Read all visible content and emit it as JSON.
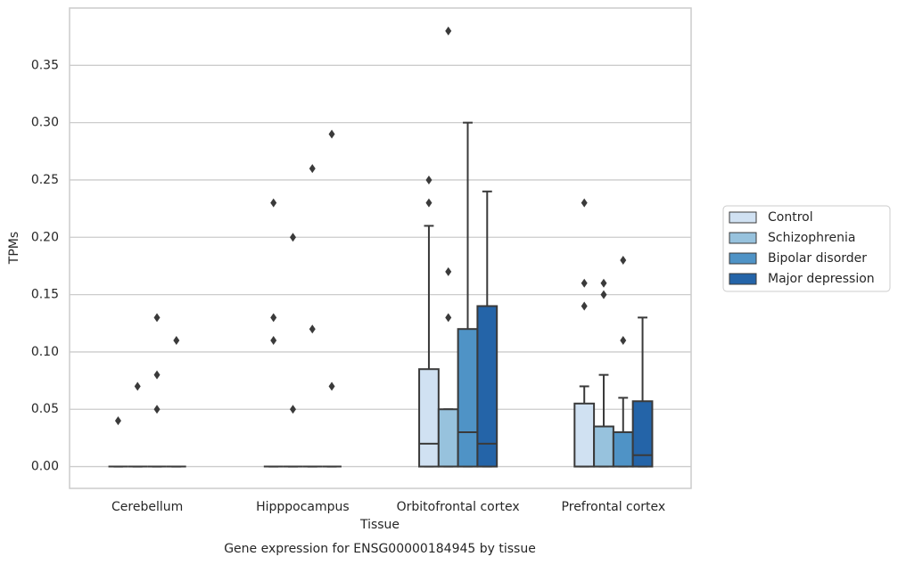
{
  "chart_data": {
    "type": "box",
    "title": "Gene expression for ENSG00000184945 by tissue",
    "x_label": "Tissue",
    "y_label": "TPMs",
    "categories": [
      "Cerebellum",
      "Hipppocampus",
      "Orbitofrontal cortex",
      "Prefrontal cortex"
    ],
    "ylim": [
      -0.019,
      0.4
    ],
    "yticks": [
      {
        "value": 0,
        "label": "0.00"
      },
      {
        "value": 0.05,
        "label": "0.05"
      },
      {
        "value": 0.1,
        "label": "0.10"
      },
      {
        "value": 0.15,
        "label": "0.15"
      },
      {
        "value": 0.2,
        "label": "0.20"
      },
      {
        "value": 0.25,
        "label": "0.25"
      },
      {
        "value": 0.3,
        "label": "0.30"
      },
      {
        "value": 0.35,
        "label": "0.35"
      }
    ],
    "grid": true,
    "legend_position": "right",
    "series": [
      {
        "name": "Control",
        "color": "#d0e1f2",
        "boxes": [
          {
            "q1": 0,
            "median": 0,
            "q3": 0,
            "whislo": 0,
            "whishi": 0,
            "fliers": [
              0.04
            ]
          },
          {
            "q1": 0,
            "median": 0,
            "q3": 0,
            "whislo": 0,
            "whishi": 0,
            "fliers": [
              0.23,
              0.13,
              0.11
            ]
          },
          {
            "q1": 0,
            "median": 0.02,
            "q3": 0.085,
            "whislo": 0,
            "whishi": 0.21,
            "fliers": [
              0.25,
              0.23
            ]
          },
          {
            "q1": 0,
            "median": 0,
            "q3": 0.055,
            "whislo": 0,
            "whishi": 0.07,
            "fliers": [
              0.23,
              0.16,
              0.14
            ]
          }
        ]
      },
      {
        "name": "Schizophrenia",
        "color": "#97c2dd",
        "boxes": [
          {
            "q1": 0,
            "median": 0,
            "q3": 0,
            "whislo": 0,
            "whishi": 0,
            "fliers": [
              0.07
            ]
          },
          {
            "q1": 0,
            "median": 0,
            "q3": 0,
            "whislo": 0,
            "whishi": 0,
            "fliers": [
              0.2,
              0.05
            ]
          },
          {
            "q1": 0,
            "median": 0,
            "q3": 0.05,
            "whislo": 0,
            "whishi": 0.05,
            "fliers": [
              0.38,
              0.17,
              0.13
            ]
          },
          {
            "q1": 0,
            "median": 0,
            "q3": 0.035,
            "whislo": 0,
            "whishi": 0.08,
            "fliers": [
              0.16,
              0.15
            ]
          }
        ]
      },
      {
        "name": "Bipolar disorder",
        "color": "#4f93c6",
        "boxes": [
          {
            "q1": 0,
            "median": 0,
            "q3": 0,
            "whislo": 0,
            "whishi": 0,
            "fliers": [
              0.13,
              0.08,
              0.05
            ]
          },
          {
            "q1": 0,
            "median": 0,
            "q3": 0,
            "whislo": 0,
            "whishi": 0,
            "fliers": [
              0.26,
              0.12
            ]
          },
          {
            "q1": 0,
            "median": 0.03,
            "q3": 0.12,
            "whislo": 0,
            "whishi": 0.3,
            "fliers": []
          },
          {
            "q1": 0,
            "median": 0,
            "q3": 0.03,
            "whislo": 0,
            "whishi": 0.06,
            "fliers": [
              0.18,
              0.11
            ]
          }
        ]
      },
      {
        "name": "Major depression",
        "color": "#2464a8",
        "boxes": [
          {
            "q1": 0,
            "median": 0,
            "q3": 0,
            "whislo": 0,
            "whishi": 0,
            "fliers": [
              0.11
            ]
          },
          {
            "q1": 0,
            "median": 0,
            "q3": 0,
            "whislo": 0,
            "whishi": 0,
            "fliers": [
              0.29,
              0.07
            ]
          },
          {
            "q1": 0,
            "median": 0.02,
            "q3": 0.14,
            "whislo": 0,
            "whishi": 0.24,
            "fliers": []
          },
          {
            "q1": 0,
            "median": 0.01,
            "q3": 0.057,
            "whislo": 0,
            "whishi": 0.13,
            "fliers": []
          }
        ]
      }
    ]
  }
}
